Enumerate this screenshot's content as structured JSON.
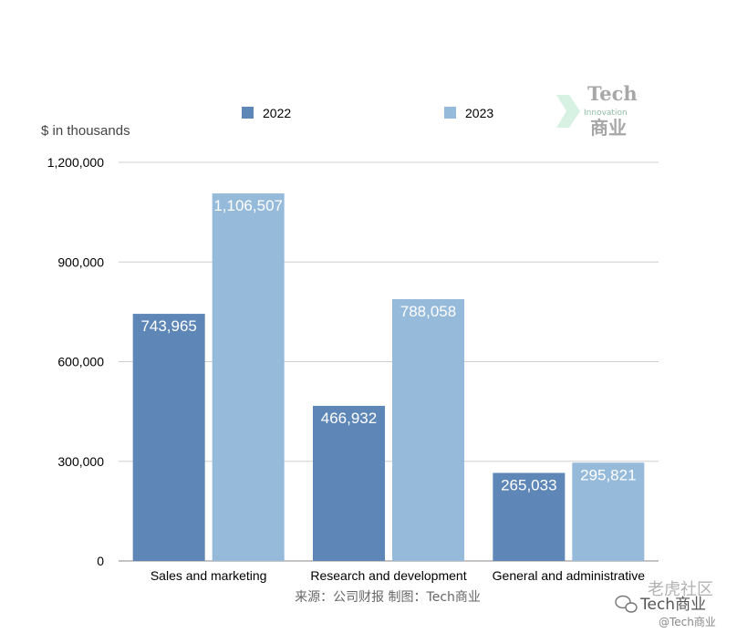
{
  "chart_data": {
    "type": "bar",
    "title": "",
    "ylabel": "$ in thousands",
    "xlabel": "",
    "categories": [
      "Sales and marketing",
      "Research and development",
      "General and administrative"
    ],
    "series": [
      {
        "name": "2022",
        "values": [
          743965,
          466932,
          265033
        ],
        "labels": [
          "743,965",
          "466,932",
          "265,033"
        ],
        "color": "#5e87b8"
      },
      {
        "name": "2023",
        "values": [
          1106507,
          788058,
          295821
        ],
        "labels": [
          "1,106,507",
          "788,058",
          "295,821"
        ],
        "color": "#96bada"
      }
    ],
    "ylim": [
      0,
      1200000
    ],
    "yticks": [
      0,
      300000,
      600000,
      900000,
      1200000
    ],
    "ytick_labels": [
      "0",
      "300,000",
      "600,000",
      "900,000",
      "1,200,000"
    ],
    "grid": true,
    "legend": "top"
  },
  "source_text": "来源：公司财报 制图：Tech商业",
  "watermark": {
    "logo_top": "Tech",
    "logo_middle": "Innovation",
    "logo_bottom": "商业",
    "corner_main": "老虎社区",
    "corner_account": "Tech商业",
    "corner_handle": "@Tech商业"
  }
}
